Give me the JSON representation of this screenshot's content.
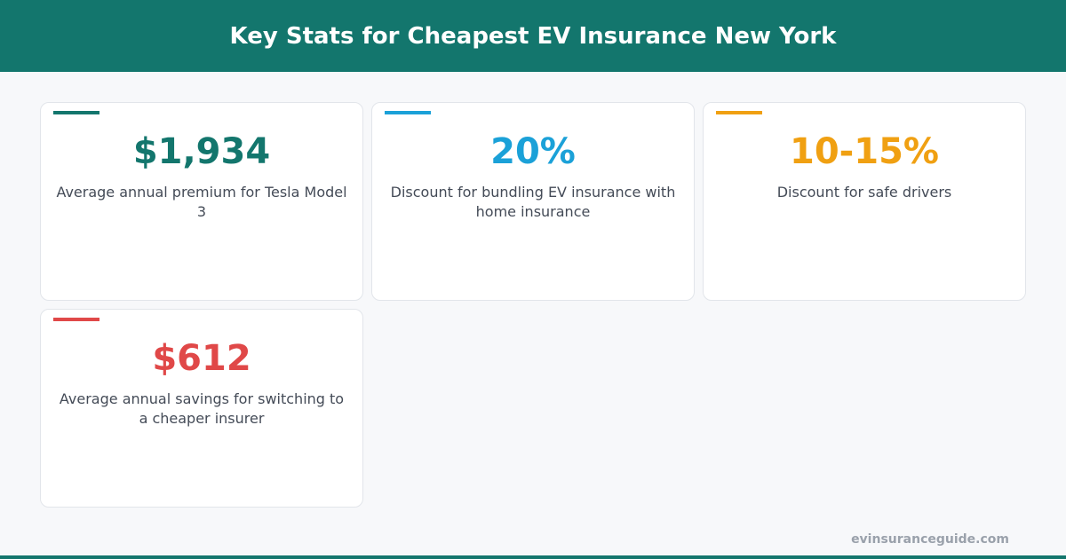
{
  "header": {
    "title": "Key Stats for Cheapest EV Insurance New York"
  },
  "stats": [
    {
      "value": "$1,934",
      "label": "Average annual premium for Tesla Model 3",
      "color": "#13766d"
    },
    {
      "value": "20%",
      "label": "Discount for bundling EV insurance with home insurance",
      "color": "#1ba1d8"
    },
    {
      "value": "10-15%",
      "label": "Discount for safe drivers",
      "color": "#f0a012"
    },
    {
      "value": "$612",
      "label": "Average annual savings for switching to a cheaper insurer",
      "color": "#e04848"
    }
  ],
  "footer": {
    "source": "evinsuranceguide.com"
  }
}
